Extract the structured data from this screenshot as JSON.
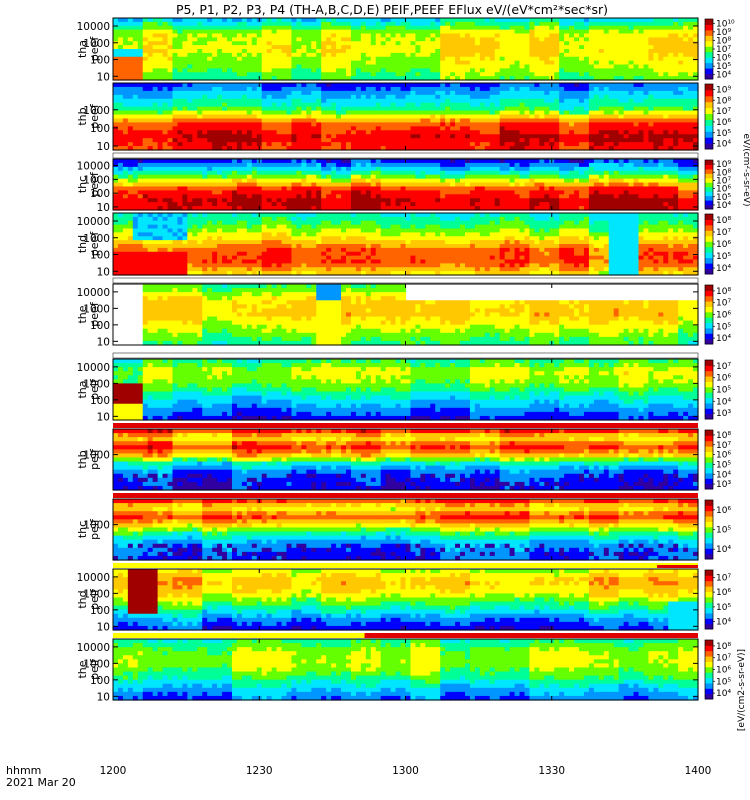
{
  "title": "P5, P1, P2, P3, P4 (TH-A,B,C,D,E) PEIF,PEEF EFlux eV/(eV*cm²*sec*sr)",
  "time_axis": {
    "start_label": "hhmm",
    "date_label": "2021 Mar 20",
    "ticks": [
      "1200",
      "1230",
      "1300",
      "1330",
      "1400"
    ],
    "tick_minutes": [
      0,
      30,
      60,
      90,
      120
    ],
    "range_minutes": [
      0,
      120
    ]
  },
  "colorbar_unit_label": "eV/(cm²-s-sr-eV)",
  "colorbar_unit_label_bottom": "[eV/(cm2-s-sr-eV)]",
  "palette": [
    "#3000a0",
    "#0000ff",
    "#0096ff",
    "#00e6ff",
    "#00ff96",
    "#64ff00",
    "#ffff00",
    "#ffc800",
    "#ff6400",
    "#ff0000",
    "#a00000"
  ],
  "chart_data": [
    {
      "type": "heatmap",
      "name": "tha-peef",
      "ylabel": [
        "tha",
        "peef"
      ],
      "y_log": true,
      "yticks": [
        "10",
        "100",
        "1000",
        "10000"
      ],
      "cbar_ticks": [
        "10⁴",
        "10⁵",
        "10⁶",
        "10⁷",
        "10⁸",
        "10⁹",
        "10¹⁰"
      ],
      "profile": [
        0.45,
        0.55,
        0.62,
        0.58,
        0.3
      ],
      "pattern": "tha_e",
      "strip": ""
    },
    {
      "type": "heatmap",
      "name": "thb-peef",
      "ylabel": [
        "thb",
        "peef"
      ],
      "y_log": true,
      "yticks": [
        "10",
        "100",
        "1000"
      ],
      "cbar_ticks": [
        "10⁴",
        "10⁵",
        "10⁶",
        "10⁷",
        "10⁸",
        "10⁹"
      ],
      "profile": [
        0.85,
        0.9,
        0.8,
        0.45,
        0.3,
        0.15
      ],
      "pattern": "layered",
      "strip": ""
    },
    {
      "type": "heatmap",
      "name": "thc-peef",
      "ylabel": [
        "thc",
        "peef"
      ],
      "y_log": true,
      "yticks": [
        "10",
        "100",
        "1000",
        "10000"
      ],
      "cbar_ticks": [
        "10⁴",
        "10⁵",
        "10⁶",
        "10⁷",
        "10⁸",
        "10⁹"
      ],
      "profile": [
        0.88,
        0.9,
        0.82,
        0.55,
        0.3,
        0.1
      ],
      "pattern": "layered",
      "strip": "white"
    },
    {
      "type": "heatmap",
      "name": "thd-peef",
      "ylabel": [
        "thd",
        "peef"
      ],
      "y_log": true,
      "yticks": [
        "10",
        "100",
        "1000",
        "10000"
      ],
      "cbar_ticks": [
        "10⁴",
        "10⁵",
        "10⁶",
        "10⁷",
        "10⁸"
      ],
      "profile": [
        0.6,
        0.8,
        0.78,
        0.6,
        0.45,
        0.35
      ],
      "pattern": "thd_e",
      "strip": ""
    },
    {
      "type": "heatmap",
      "name": "the-peef",
      "ylabel": [
        "the",
        "peef"
      ],
      "y_log": true,
      "yticks": [
        "10",
        "100",
        "1000",
        "10000"
      ],
      "cbar_ticks": [
        "10⁴",
        "10⁵",
        "10⁶",
        "10⁷",
        "10⁸"
      ],
      "profile": [
        0.4,
        0.52,
        0.65,
        0.62,
        0.4
      ],
      "pattern": "the_e",
      "strip": "white"
    },
    {
      "type": "heatmap",
      "name": "tha-peif",
      "ylabel": [
        "tha",
        "peif"
      ],
      "y_log": true,
      "yticks": [
        "10",
        "100",
        "1000",
        "10000"
      ],
      "cbar_ticks": [
        "10³",
        "10⁴",
        "10⁵",
        "10⁶",
        "10⁷"
      ],
      "profile": [
        0.1,
        0.22,
        0.35,
        0.5,
        0.55,
        0.4
      ],
      "pattern": "tha_i",
      "strip": "white"
    },
    {
      "type": "heatmap",
      "name": "thb-peif",
      "ylabel": [
        "thb",
        "peif"
      ],
      "y_log": true,
      "yticks": [
        "1000"
      ],
      "cbar_ticks": [
        "10³",
        "10⁴",
        "10⁵",
        "10⁶",
        "10⁷",
        "10⁸"
      ],
      "profile": [
        0.12,
        0.15,
        0.2,
        0.35,
        0.68,
        0.85,
        0.6,
        0.92
      ],
      "pattern": "mag_i",
      "strip": "red"
    },
    {
      "type": "heatmap",
      "name": "thc-peif",
      "ylabel": [
        "thc",
        "peif"
      ],
      "y_log": true,
      "yticks": [
        "1000"
      ],
      "cbar_ticks": [
        "10⁴",
        "10⁵",
        "10⁶"
      ],
      "profile": [
        0.15,
        0.18,
        0.25,
        0.4,
        0.62,
        0.82,
        0.58,
        0.88
      ],
      "pattern": "mag_i",
      "strip": "red"
    },
    {
      "type": "heatmap",
      "name": "thd-peif",
      "ylabel": [
        "thd",
        "peif"
      ],
      "y_log": true,
      "yticks": [
        "10",
        "100",
        "1000",
        "10000"
      ],
      "cbar_ticks": [
        "10⁴",
        "10⁵",
        "10⁶",
        "10⁷"
      ],
      "profile": [
        0.12,
        0.25,
        0.45,
        0.62,
        0.7,
        0.55
      ],
      "pattern": "thd_i",
      "strip": "yellow_red_end"
    },
    {
      "type": "heatmap",
      "name": "the-peif",
      "ylabel": [
        "the",
        "peif"
      ],
      "y_log": true,
      "yticks": [
        "10",
        "100",
        "1000",
        "10000"
      ],
      "cbar_ticks": [
        "10⁴",
        "10⁵",
        "10⁶",
        "10⁷",
        "10⁸"
      ],
      "profile": [
        0.18,
        0.3,
        0.45,
        0.55,
        0.52,
        0.4
      ],
      "pattern": "the_i",
      "strip": "yellow_red_half"
    }
  ]
}
